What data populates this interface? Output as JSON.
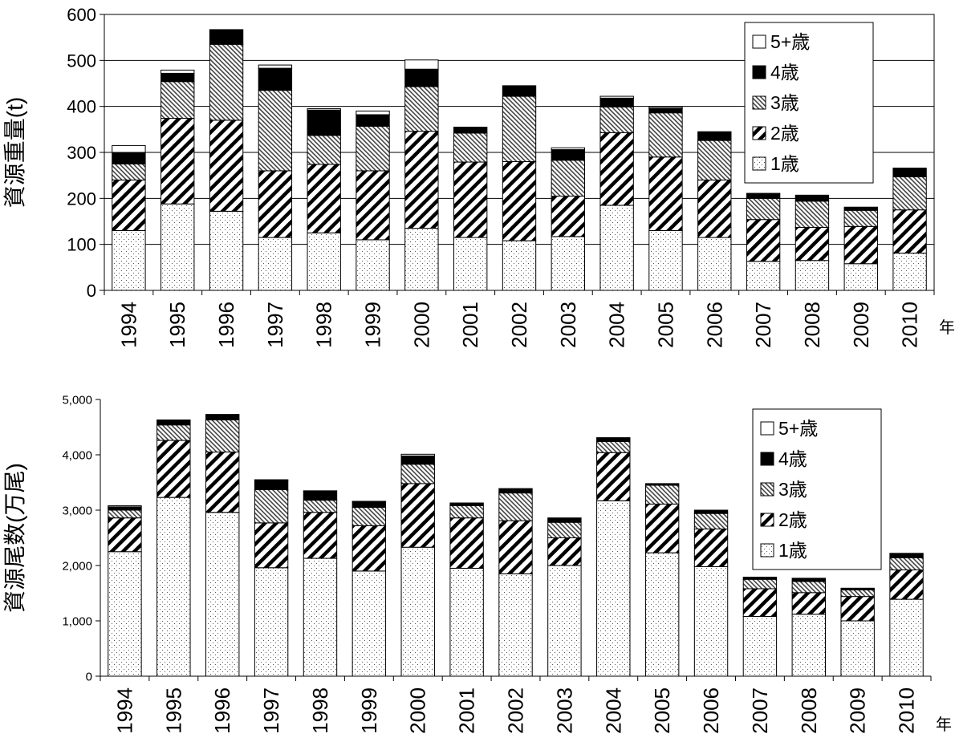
{
  "chart_data": [
    {
      "type": "bar",
      "stacked": true,
      "ylabel": "資源重量(t)",
      "xlabel_suffix": "年",
      "ylim": [
        0,
        600
      ],
      "yticks": [
        "0",
        "100",
        "200",
        "300",
        "400",
        "500",
        "600"
      ],
      "grid": true,
      "legend_position": "top-right",
      "categories": [
        "1994",
        "1995",
        "1996",
        "1997",
        "1998",
        "1999",
        "2000",
        "2001",
        "2002",
        "2003",
        "2004",
        "2005",
        "2006",
        "2007",
        "2008",
        "2009",
        "2010"
      ],
      "series": [
        {
          "name": "1歳",
          "pattern": "dots",
          "values": [
            130,
            188,
            172,
            115,
            125,
            110,
            135,
            115,
            108,
            117,
            185,
            130,
            115,
            63,
            65,
            58,
            81
          ]
        },
        {
          "name": "2歳",
          "pattern": "diagonal",
          "values": [
            110,
            186,
            198,
            145,
            149,
            150,
            211,
            164,
            172,
            88,
            158,
            160,
            125,
            91,
            72,
            81,
            94
          ]
        },
        {
          "name": "3歳",
          "pattern": "hatch",
          "values": [
            35,
            80,
            165,
            175,
            63,
            97,
            97,
            63,
            142,
            78,
            56,
            96,
            86,
            46,
            57,
            35,
            72
          ]
        },
        {
          "name": "4歳",
          "pattern": "solid-black",
          "values": [
            25,
            18,
            32,
            48,
            55,
            25,
            38,
            13,
            23,
            23,
            19,
            10,
            19,
            11,
            13,
            7,
            19
          ]
        },
        {
          "name": "5+歳",
          "pattern": "white",
          "values": [
            15,
            7,
            0,
            7,
            3,
            8,
            20,
            0,
            0,
            4,
            4,
            3,
            0,
            0,
            0,
            0,
            0
          ]
        }
      ]
    },
    {
      "type": "bar",
      "stacked": true,
      "ylabel": "資源尾数(万尾)",
      "xlabel_suffix": "年",
      "ylim": [
        0,
        5000
      ],
      "yticks": [
        "0",
        "1,000",
        "2,000",
        "3,000",
        "4,000",
        "5,000"
      ],
      "grid": false,
      "legend_position": "top-right",
      "categories": [
        "1994",
        "1995",
        "1996",
        "1997",
        "1998",
        "1999",
        "2000",
        "2001",
        "2002",
        "2003",
        "2004",
        "2005",
        "2006",
        "2007",
        "2008",
        "2009",
        "2010"
      ],
      "series": [
        {
          "name": "1歳",
          "pattern": "dots",
          "values": [
            2250,
            3230,
            2960,
            1960,
            2130,
            1900,
            2330,
            1950,
            1850,
            2000,
            3170,
            2230,
            1980,
            1080,
            1120,
            1000,
            1390
          ]
        },
        {
          "name": "2歳",
          "pattern": "diagonal",
          "values": [
            610,
            1030,
            1090,
            810,
            830,
            820,
            1150,
            910,
            960,
            500,
            870,
            880,
            680,
            500,
            390,
            440,
            530
          ]
        },
        {
          "name": "3歳",
          "pattern": "hatch",
          "values": [
            140,
            280,
            580,
            600,
            220,
            330,
            350,
            220,
            500,
            280,
            200,
            340,
            280,
            170,
            200,
            120,
            220
          ]
        },
        {
          "name": "4歳",
          "pattern": "solid-black",
          "values": [
            60,
            80,
            100,
            170,
            170,
            100,
            150,
            50,
            80,
            80,
            60,
            30,
            60,
            40,
            60,
            30,
            80
          ]
        },
        {
          "name": "5+歳",
          "pattern": "white",
          "values": [
            20,
            10,
            0,
            10,
            0,
            10,
            30,
            0,
            0,
            0,
            10,
            0,
            0,
            0,
            0,
            0,
            0
          ]
        }
      ]
    }
  ]
}
